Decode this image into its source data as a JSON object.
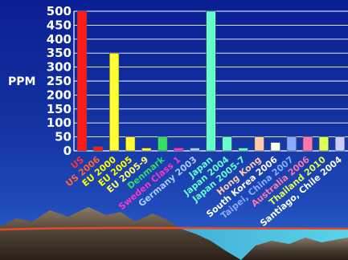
{
  "chart_data": {
    "type": "bar",
    "ylabel": "PPM",
    "xlabel": "",
    "title": "",
    "ylim": [
      0,
      500
    ],
    "yticks": [
      0,
      50,
      100,
      150,
      200,
      250,
      300,
      350,
      400,
      450,
      500
    ],
    "grid": true,
    "legend": "none",
    "categories": [
      "US",
      "US 2006",
      "EU 2000",
      "EU 2005",
      "EU 2005-9",
      "Denmark",
      "Sweden Class 1",
      "Germany 2003",
      "Japan",
      "Japan 2004",
      "Japan 2005-7",
      "Hong Kong",
      "South Korea 2006",
      "Taipei, China 2007",
      "Australia 2006",
      "Thailand 2010",
      "Santiago, Chile 2004"
    ],
    "values": [
      500,
      15,
      350,
      50,
      10,
      50,
      10,
      10,
      500,
      50,
      10,
      50,
      30,
      50,
      50,
      50,
      50
    ],
    "bar_colors": [
      "#ff1a1a",
      "#ff1a1a",
      "#ffff33",
      "#ffff33",
      "#ffff33",
      "#33dd66",
      "#ff33cc",
      "#aaccff",
      "#66ffcc",
      "#66ffcc",
      "#66ffcc",
      "#ffccaa",
      "#ffffee",
      "#88aaff",
      "#ff77aa",
      "#ddff55",
      "#ccccff"
    ],
    "label_colors": [
      "#ff3333",
      "#ff6633",
      "#ffff00",
      "#ffff00",
      "#ffff66",
      "#33dd66",
      "#ff33cc",
      "#aaccff",
      "#66ffcc",
      "#66ffcc",
      "#66ffcc",
      "#ffccaa",
      "#ffffff",
      "#88aaff",
      "#ff77aa",
      "#ddff55",
      "#ffffff"
    ]
  }
}
